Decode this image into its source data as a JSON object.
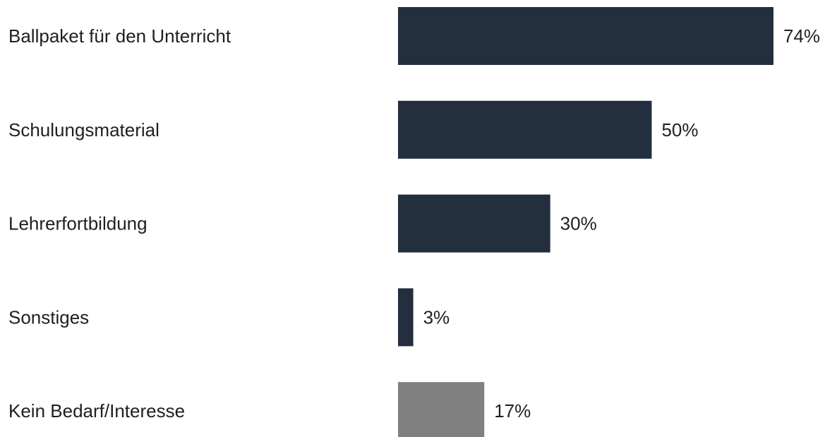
{
  "chart_data": {
    "type": "bar",
    "orientation": "horizontal",
    "title": "",
    "xlabel": "",
    "ylabel": "",
    "xlim": [
      0,
      74
    ],
    "grid": false,
    "legend": "none",
    "value_suffix": "%",
    "categories": [
      "Ballpaket für den Unterricht",
      "Schulungsmaterial",
      "Lehrerfortbildung",
      "Sonstiges",
      "Kein Bedarf/Interesse"
    ],
    "values": [
      74,
      50,
      30,
      3,
      17
    ],
    "colors": [
      "#232f3e",
      "#232f3e",
      "#232f3e",
      "#232f3e",
      "#808080"
    ]
  }
}
